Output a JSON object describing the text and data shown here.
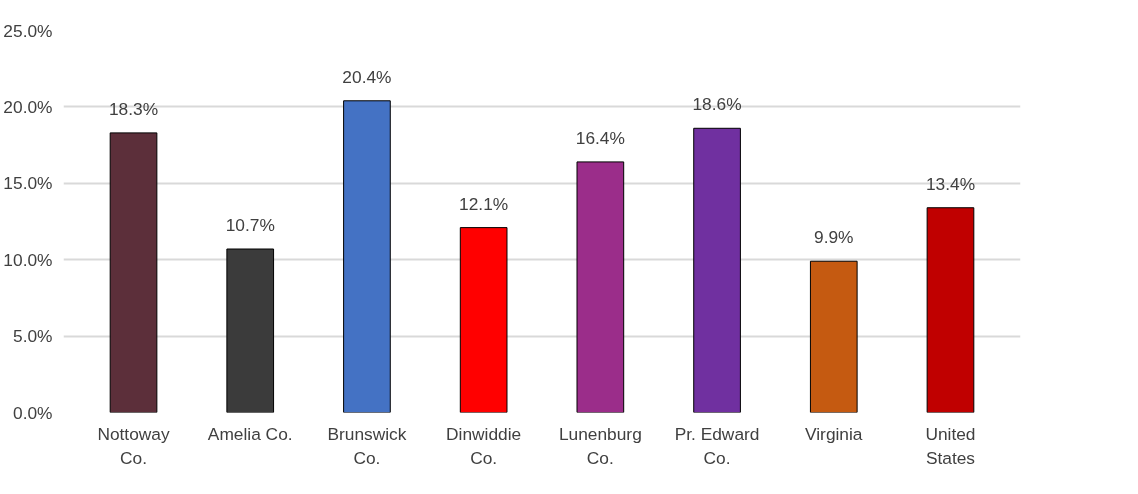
{
  "chart_data": {
    "type": "bar",
    "categories": [
      "Nottoway Co.",
      "Amelia Co.",
      "Brunswick Co.",
      "Dinwiddie Co.",
      "Lunenburg Co.",
      "Pr. Edward Co.",
      "Virginia",
      "United States"
    ],
    "values": [
      18.3,
      10.7,
      20.4,
      12.1,
      16.4,
      18.6,
      9.9,
      13.4
    ],
    "colors": [
      "#5c2f3a",
      "#3b3b3b",
      "#4472c4",
      "#ff0000",
      "#9b2d8a",
      "#7030a0",
      "#c55a11",
      "#c00000"
    ],
    "ylim": [
      0,
      25
    ],
    "yticks": [
      {
        "value": 0,
        "label": "0.0%"
      },
      {
        "value": 5,
        "label": "5.0%"
      },
      {
        "value": 10,
        "label": "10.0%"
      },
      {
        "value": 15,
        "label": "15.0%"
      },
      {
        "value": 20,
        "label": "20.0%"
      },
      {
        "value": 25,
        "label": "25.0%"
      }
    ],
    "value_labels": [
      "18.3%",
      "10.7%",
      "20.4%",
      "12.1%",
      "16.4%",
      "18.6%",
      "9.9%",
      "13.4%"
    ],
    "grid": "y"
  }
}
